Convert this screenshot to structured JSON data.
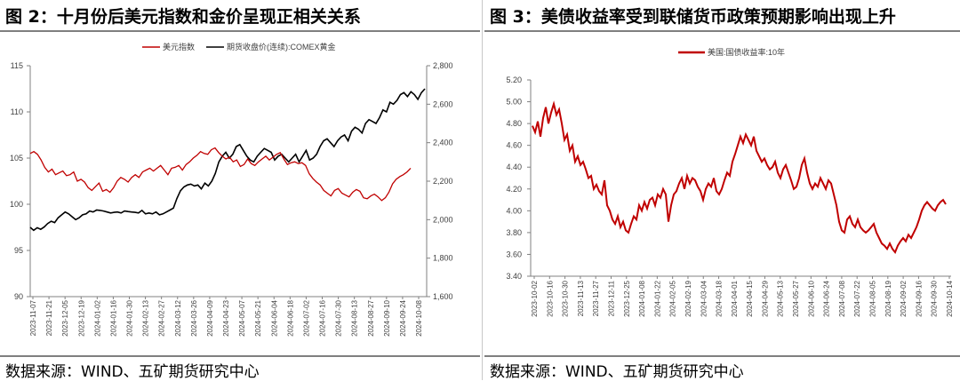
{
  "left": {
    "title": "图 2：十月份后美元指数和金价呈现正相关关系",
    "source": "数据来源：WIND、五矿期货研究中心",
    "chart_data": {
      "type": "line",
      "legend": [
        "美元指数",
        "期货收盘价(连续):COMEX黄金"
      ],
      "series": [
        {
          "name": "美元指数",
          "axis": "left",
          "color": "#c00000",
          "values": [
            105.5,
            105.7,
            105.4,
            104.8,
            104.0,
            103.5,
            103.8,
            103.2,
            103.4,
            103.6,
            103.1,
            103.2,
            103.5,
            102.5,
            102.7,
            102.4,
            101.8,
            101.5,
            101.9,
            102.3,
            101.4,
            101.6,
            101.3,
            101.8,
            102.5,
            102.9,
            102.7,
            102.4,
            102.9,
            103.2,
            102.9,
            103.5,
            103.7,
            103.9,
            103.6,
            103.9,
            104.2,
            103.7,
            103.2,
            103.9,
            104.0,
            104.2,
            103.7,
            104.3,
            104.6,
            105.0,
            105.3,
            105.7,
            105.5,
            105.4,
            105.9,
            106.1,
            105.6,
            105.2,
            104.9,
            105.1,
            104.6,
            104.8,
            104.1,
            104.3,
            104.9,
            104.4,
            104.2,
            104.6,
            104.9,
            105.2,
            104.8,
            105.1,
            105.4,
            105.6,
            104.9,
            104.3,
            104.5,
            104.6,
            104.4,
            104.5,
            104.2,
            103.3,
            102.8,
            102.4,
            102.1,
            101.5,
            101.2,
            100.9,
            101.5,
            101.7,
            101.2,
            101.0,
            100.8,
            101.3,
            101.6,
            101.4,
            100.7,
            100.6,
            100.9,
            101.1,
            100.8,
            100.4,
            100.7,
            101.3,
            102.2,
            102.7,
            103.0,
            103.2,
            103.5,
            103.9
          ]
        },
        {
          "name": "期货收盘价(连续):COMEX黄金",
          "axis": "right",
          "color": "#000000",
          "values": [
            1960,
            1945,
            1958,
            1950,
            1962,
            1980,
            1992,
            1985,
            2010,
            2025,
            2040,
            2030,
            2015,
            2000,
            2010,
            2025,
            2030,
            2045,
            2040,
            2050,
            2048,
            2045,
            2040,
            2035,
            2038,
            2040,
            2035,
            2045,
            2042,
            2040,
            2038,
            2035,
            2048,
            2030,
            2035,
            2030,
            2040,
            2025,
            2030,
            2040,
            2050,
            2060,
            2110,
            2150,
            2170,
            2180,
            2185,
            2175,
            2180,
            2160,
            2190,
            2175,
            2200,
            2240,
            2300,
            2330,
            2350,
            2320,
            2340,
            2380,
            2390,
            2360,
            2330,
            2310,
            2300,
            2330,
            2350,
            2370,
            2360,
            2350,
            2310,
            2330,
            2340,
            2320,
            2300,
            2320,
            2340,
            2300,
            2330,
            2360,
            2310,
            2320,
            2340,
            2380,
            2410,
            2420,
            2400,
            2380,
            2410,
            2430,
            2440,
            2410,
            2460,
            2480,
            2470,
            2450,
            2500,
            2520,
            2510,
            2500,
            2530,
            2570,
            2560,
            2610,
            2600,
            2620,
            2650,
            2660,
            2640,
            2665,
            2650,
            2625,
            2660,
            2680
          ]
        }
      ],
      "x_labels": [
        "2023-11-07",
        "2023-11-21",
        "2023-12-05",
        "2023-12-19",
        "2024-01-02",
        "2024-01-16",
        "2024-01-30",
        "2024-02-13",
        "2024-02-27",
        "2024-03-12",
        "2024-03-26",
        "2024-04-09",
        "2024-04-23",
        "2024-05-07",
        "2024-05-21",
        "2024-06-04",
        "2024-06-18",
        "2024-07-02",
        "2024-07-16",
        "2024-07-30",
        "2024-08-13",
        "2024-08-27",
        "2024-09-10",
        "2024-09-24",
        "2024-10-08"
      ],
      "y_left": {
        "ticks": [
          "90",
          "95",
          "100",
          "105",
          "110",
          "115"
        ],
        "min": 90,
        "max": 115
      },
      "y_right": {
        "ticks": [
          "1,600",
          "1,800",
          "2,000",
          "2,200",
          "2,400",
          "2,600",
          "2,800"
        ],
        "min": 1600,
        "max": 2800
      }
    }
  },
  "right": {
    "title": "图 3：美债收益率受到联储货币政策预期影响出现上升",
    "source": "数据来源：WIND、五矿期货研究中心",
    "chart_data": {
      "type": "line",
      "legend": [
        "美国:国债收益率:10年"
      ],
      "series": [
        {
          "name": "美国:国债收益率:10年",
          "color": "#c00000",
          "values": [
            4.78,
            4.72,
            4.82,
            4.68,
            4.85,
            4.95,
            4.8,
            4.9,
            4.98,
            4.88,
            4.93,
            4.8,
            4.65,
            4.7,
            4.55,
            4.6,
            4.45,
            4.5,
            4.42,
            4.45,
            4.38,
            4.3,
            4.32,
            4.2,
            4.24,
            4.18,
            4.15,
            4.28,
            4.05,
            4.0,
            3.92,
            3.88,
            3.95,
            3.85,
            3.9,
            3.82,
            3.8,
            3.88,
            3.95,
            3.92,
            4.05,
            4.0,
            4.08,
            4.02,
            4.1,
            4.12,
            4.05,
            4.15,
            4.12,
            4.2,
            4.15,
            3.9,
            4.05,
            4.15,
            4.18,
            4.25,
            4.3,
            4.2,
            4.32,
            4.25,
            4.3,
            4.28,
            4.22,
            4.18,
            4.1,
            4.2,
            4.25,
            4.22,
            4.3,
            4.18,
            4.15,
            4.2,
            4.28,
            4.35,
            4.32,
            4.45,
            4.52,
            4.6,
            4.68,
            4.62,
            4.7,
            4.65,
            4.6,
            4.68,
            4.55,
            4.5,
            4.45,
            4.48,
            4.42,
            4.38,
            4.4,
            4.45,
            4.35,
            4.3,
            4.38,
            4.42,
            4.35,
            4.28,
            4.2,
            4.22,
            4.3,
            4.42,
            4.48,
            4.35,
            4.25,
            4.2,
            4.25,
            4.22,
            4.3,
            4.25,
            4.2,
            4.28,
            4.25,
            4.15,
            4.05,
            3.9,
            3.82,
            3.8,
            3.92,
            3.95,
            3.88,
            3.85,
            3.92,
            3.85,
            3.82,
            3.8,
            3.82,
            3.85,
            3.88,
            3.8,
            3.75,
            3.7,
            3.68,
            3.65,
            3.7,
            3.65,
            3.62,
            3.68,
            3.72,
            3.75,
            3.72,
            3.78,
            3.75,
            3.8,
            3.85,
            3.92,
            4.0,
            4.05,
            4.08,
            4.05,
            4.02,
            4.0,
            4.05,
            4.08,
            4.1,
            4.06
          ]
        }
      ],
      "x_labels": [
        "2023-10-02",
        "2023-10-16",
        "2023-10-30",
        "2023-11-13",
        "2023-11-27",
        "2023-12-11",
        "2023-12-25",
        "2024-01-08",
        "2024-01-22",
        "2024-02-05",
        "2024-02-19",
        "2024-03-04",
        "2024-03-18",
        "2024-04-01",
        "2024-04-15",
        "2024-04-29",
        "2024-05-13",
        "2024-05-27",
        "2024-06-10",
        "2024-06-24",
        "2024-07-08",
        "2024-07-22",
        "2024-08-05",
        "2024-08-19",
        "2024-09-02",
        "2024-09-16",
        "2024-09-30",
        "2024-10-14"
      ],
      "y": {
        "ticks": [
          "3.40",
          "3.60",
          "3.80",
          "4.00",
          "4.20",
          "4.40",
          "4.60",
          "4.80",
          "5.00",
          "5.20"
        ],
        "min": 3.4,
        "max": 5.2
      }
    }
  }
}
